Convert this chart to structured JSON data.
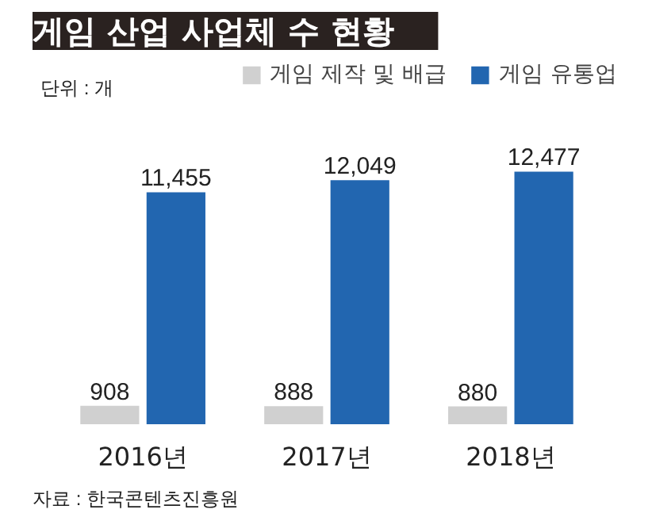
{
  "chart_data": {
    "type": "bar",
    "title": "게임 산업 사업체 수 현황",
    "categories": [
      "2016년",
      "2017년",
      "2018년"
    ],
    "series": [
      {
        "name": "게임 제작 및 배급",
        "color": "#d0d0d0",
        "values": [
          908,
          888,
          880
        ],
        "value_labels": [
          "908",
          "888",
          "880"
        ]
      },
      {
        "name": "게임 유통업",
        "color": "#2266b0",
        "values": [
          11455,
          12049,
          12477
        ],
        "value_labels": [
          "11,455",
          "12,049",
          "12,477"
        ]
      }
    ],
    "legend": "top",
    "grid": false,
    "annotations": [
      "단위 : 개",
      "자료 : 한국콘텐츠진흥원"
    ]
  }
}
